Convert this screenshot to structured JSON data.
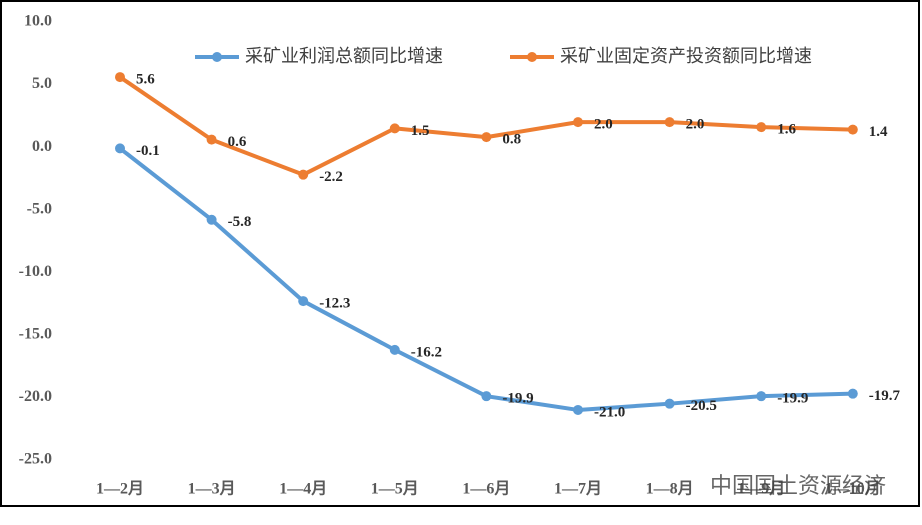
{
  "chart_data": {
    "type": "line",
    "categories": [
      "1—2月",
      "1—3月",
      "1—4月",
      "1—5月",
      "1—6月",
      "1—7月",
      "1—8月",
      "1—9月",
      "1—10月"
    ],
    "series": [
      {
        "name": "采矿业利润总额同比增速",
        "color": "#5b9bd5",
        "values": [
          -0.1,
          -5.8,
          -12.3,
          -16.2,
          -19.9,
          -21.0,
          -20.5,
          -19.9,
          -19.7
        ],
        "value_labels": [
          "-0.1",
          "-5.8",
          "-12.3",
          "-16.2",
          "-19.9",
          "-21.0",
          "-20.5",
          "-19.9",
          "-19.7"
        ]
      },
      {
        "name": "采矿业固定资产投资额同比增速",
        "color": "#ed7d31",
        "values": [
          5.6,
          0.6,
          -2.2,
          1.5,
          0.8,
          2.0,
          2.0,
          1.6,
          1.4
        ],
        "value_labels": [
          "5.6",
          "0.6",
          "-2.2",
          "1.5",
          "0.8",
          "2.0",
          "2.0",
          "1.6",
          "1.4"
        ]
      }
    ],
    "ylim": [
      -25,
      10
    ],
    "yticks": [
      {
        "value": -25,
        "label": "-25.0"
      },
      {
        "value": -20,
        "label": "-20.0"
      },
      {
        "value": -15,
        "label": "-15.0"
      },
      {
        "value": -10,
        "label": "-10.0"
      },
      {
        "value": -5,
        "label": "-5.0"
      },
      {
        "value": 0,
        "label": "0.0"
      },
      {
        "value": 5,
        "label": "5.0"
      },
      {
        "value": 10,
        "label": "10.0"
      }
    ],
    "legend": "top",
    "watermark": "中国国土资源经济"
  }
}
